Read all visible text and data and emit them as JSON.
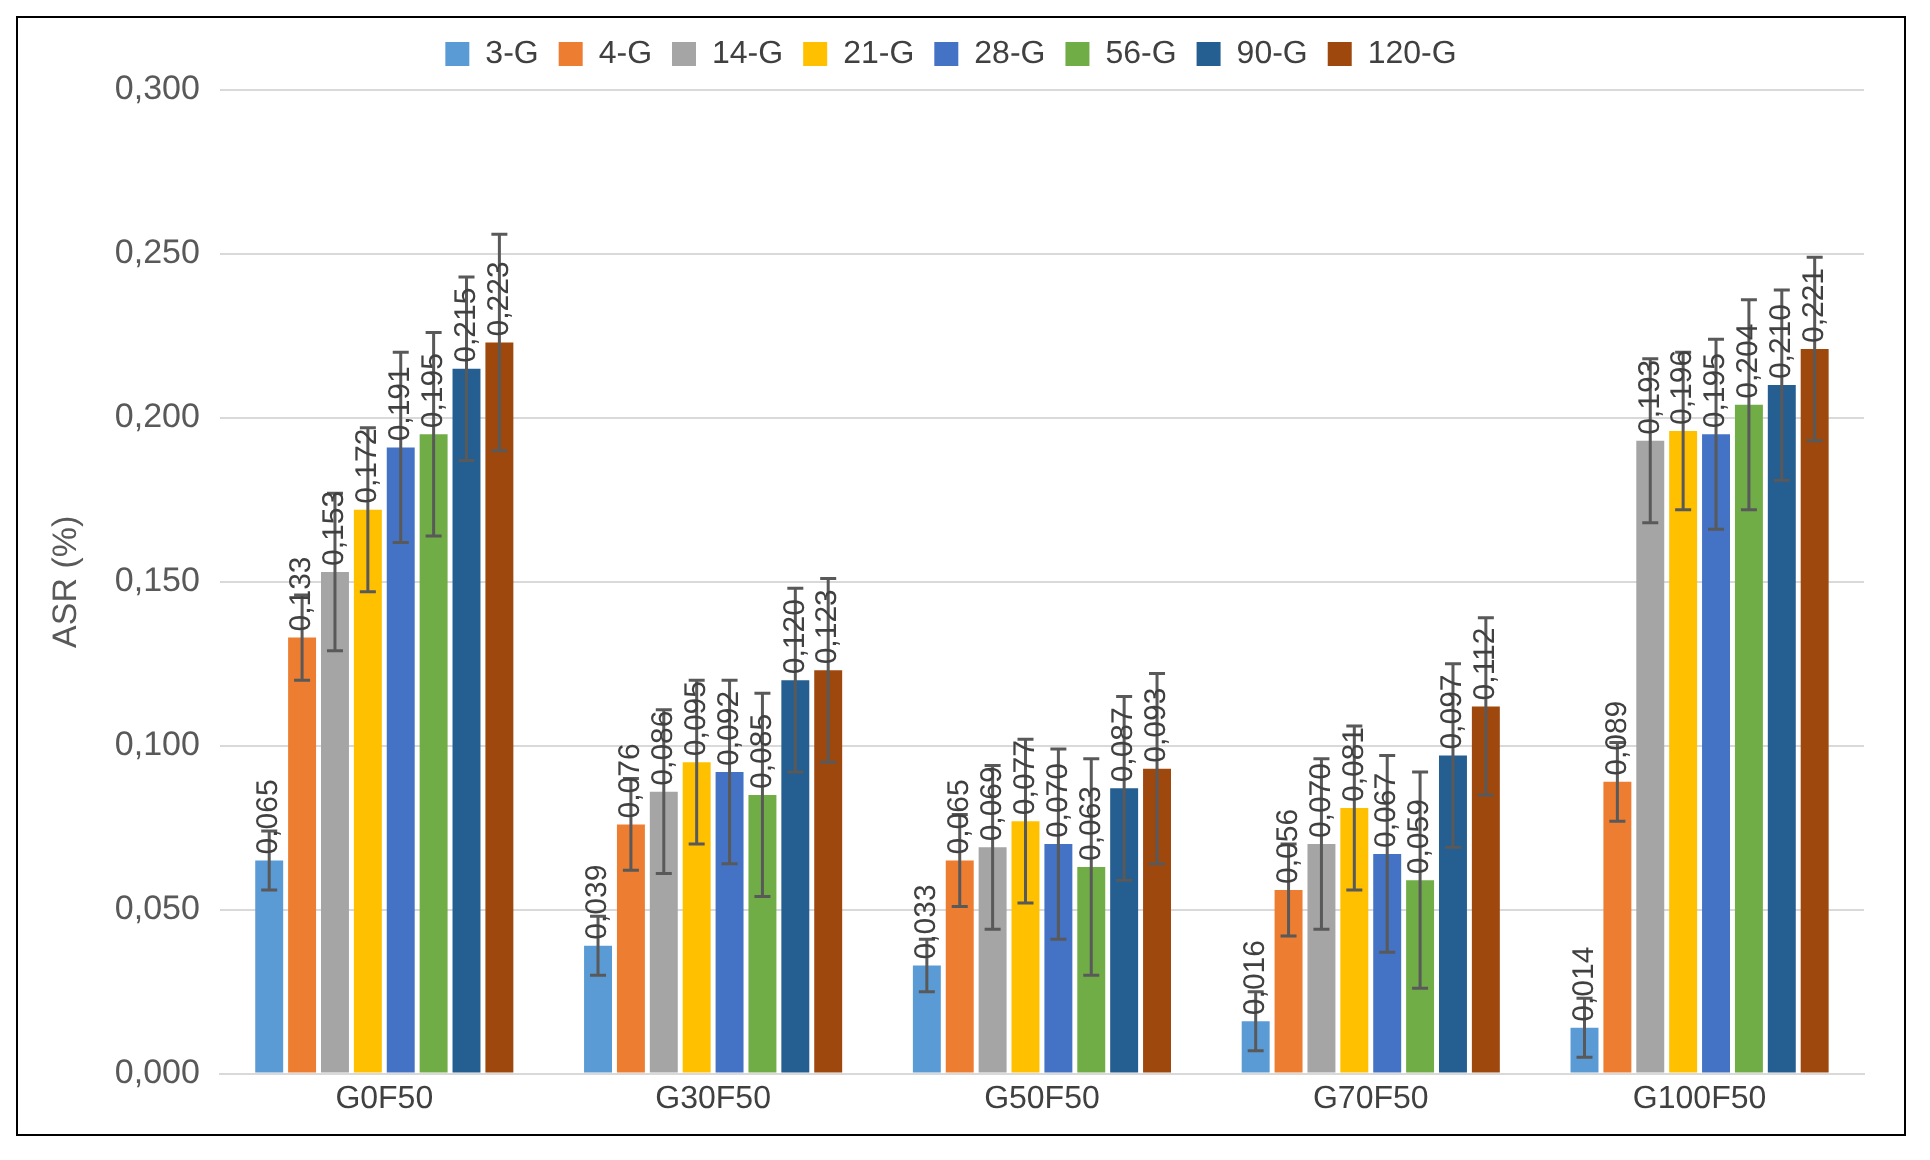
{
  "chart_data": {
    "type": "bar",
    "ylabel": "ASR (%)",
    "categories": [
      "G0F50",
      "G30F50",
      "G50F50",
      "G70F50",
      "G100F50"
    ],
    "series": [
      {
        "name": "3-G",
        "color": "#5b9bd5",
        "values": [
          0.065,
          0.039,
          0.033,
          0.016,
          0.014
        ],
        "value_labels": [
          "0,065",
          "0,039",
          "0,033",
          "0,016",
          "0,014"
        ],
        "errors": [
          0.009,
          0.009,
          0.008,
          0.009,
          0.009
        ]
      },
      {
        "name": "4-G",
        "color": "#ed7d31",
        "values": [
          0.133,
          0.076,
          0.065,
          0.056,
          0.089
        ],
        "value_labels": [
          "0,133",
          "0,076",
          "0,065",
          "0,056",
          "0,089"
        ],
        "errors": [
          0.013,
          0.014,
          0.014,
          0.014,
          0.012
        ]
      },
      {
        "name": "14-G",
        "color": "#a5a5a5",
        "values": [
          0.153,
          0.086,
          0.069,
          0.07,
          0.193
        ],
        "value_labels": [
          "0,153",
          "0,086",
          "0,069",
          "0,070",
          "0,193"
        ],
        "errors": [
          0.024,
          0.025,
          0.025,
          0.026,
          0.025
        ]
      },
      {
        "name": "21-G",
        "color": "#ffc000",
        "values": [
          0.172,
          0.095,
          0.077,
          0.081,
          0.196
        ],
        "value_labels": [
          "0,172",
          "0,095",
          "0,077",
          "0,081",
          "0,196"
        ],
        "errors": [
          0.025,
          0.025,
          0.025,
          0.025,
          0.024
        ]
      },
      {
        "name": "28-G",
        "color": "#4472c4",
        "values": [
          0.191,
          0.092,
          0.07,
          0.067,
          0.195
        ],
        "value_labels": [
          "0,191",
          "0,092",
          "0,070",
          "0,067",
          "0,195"
        ],
        "errors": [
          0.029,
          0.028,
          0.029,
          0.03,
          0.029
        ]
      },
      {
        "name": "56-G",
        "color": "#70ad47",
        "values": [
          0.195,
          0.085,
          0.063,
          0.059,
          0.204
        ],
        "value_labels": [
          "0,195",
          "0,085",
          "0,063",
          "0,059",
          "0,204"
        ],
        "errors": [
          0.031,
          0.031,
          0.033,
          0.033,
          0.032
        ]
      },
      {
        "name": "90-G",
        "color": "#255e91",
        "values": [
          0.215,
          0.12,
          0.087,
          0.097,
          0.21
        ],
        "value_labels": [
          "0,215",
          "0,120",
          "0,087",
          "0,097",
          "0,210"
        ],
        "errors": [
          0.028,
          0.028,
          0.028,
          0.028,
          0.029
        ]
      },
      {
        "name": "120-G",
        "color": "#9e480e",
        "values": [
          0.223,
          0.123,
          0.093,
          0.112,
          0.221
        ],
        "value_labels": [
          "0,223",
          "0,123",
          "0,093",
          "0,112",
          "0,221"
        ],
        "errors": [
          0.033,
          0.028,
          0.029,
          0.027,
          0.028
        ]
      }
    ],
    "ylim": [
      0,
      0.3
    ],
    "yticks": [
      {
        "value": 0,
        "label": "0,000"
      },
      {
        "value": 0.05,
        "label": "0,050"
      },
      {
        "value": 0.1,
        "label": "0,100"
      },
      {
        "value": 0.15,
        "label": "0,150"
      },
      {
        "value": 0.2,
        "label": "0,200"
      },
      {
        "value": 0.25,
        "label": "0,250"
      },
      {
        "value": 0.3,
        "label": "0,300"
      }
    ],
    "grid": "y",
    "legend": "top"
  }
}
